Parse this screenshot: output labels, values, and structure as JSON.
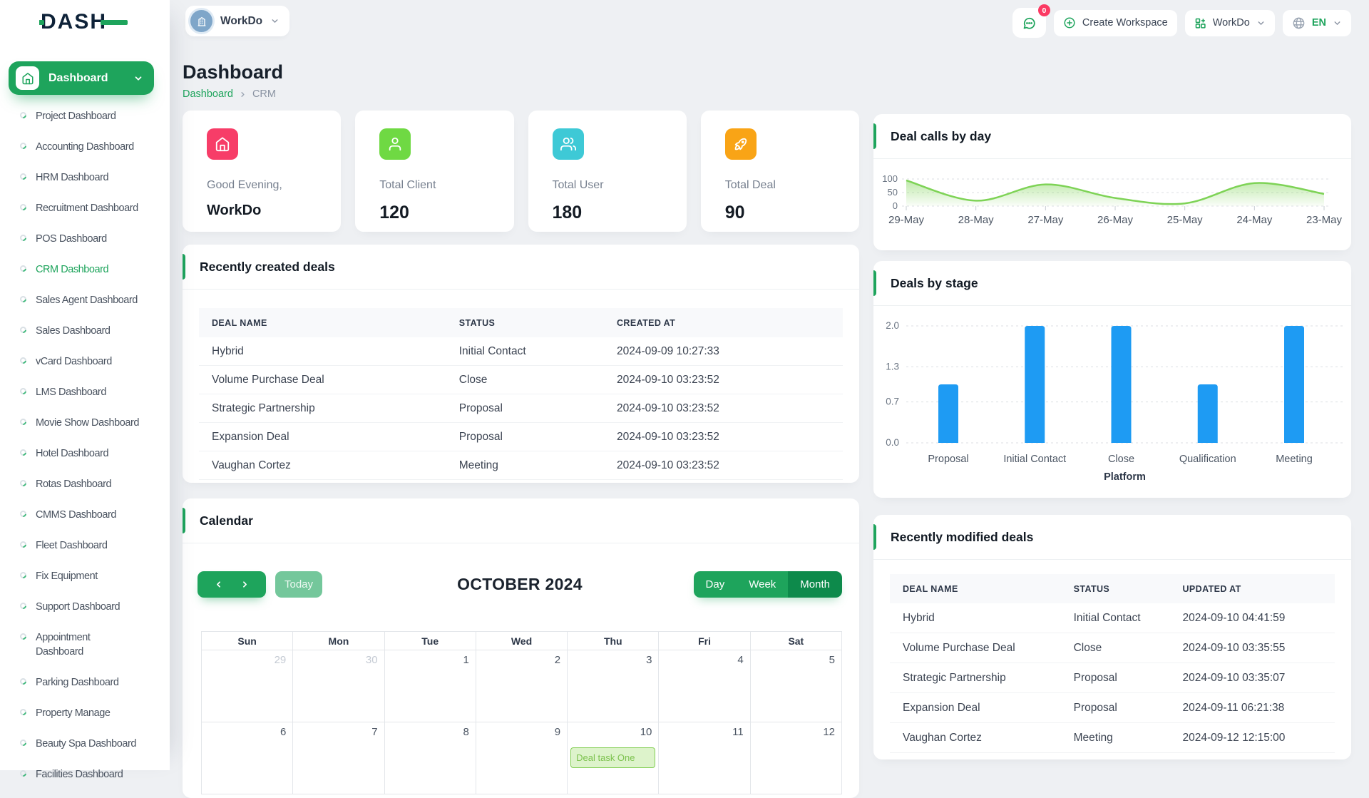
{
  "brand": {
    "logo_text": "DASH"
  },
  "topbar": {
    "workspace_chip": {
      "label": "WorkDo"
    },
    "messages_badge": "0",
    "create_workspace_label": "Create Workspace",
    "workspace_menu_label": "WorkDo",
    "language_label": "EN"
  },
  "sidebar": {
    "active_button_label": "Dashboard",
    "selected_item": "CRM Dashboard",
    "two_line_item": "Appointment Dashboard",
    "items": [
      "Project Dashboard",
      "Accounting Dashboard",
      "HRM Dashboard",
      "Recruitment Dashboard",
      "POS Dashboard",
      "CRM Dashboard",
      "Sales Agent Dashboard",
      "Sales Dashboard",
      "vCard Dashboard",
      "LMS Dashboard",
      "Movie Show Dashboard",
      "Hotel Dashboard",
      "Rotas Dashboard",
      "CMMS Dashboard",
      "Fleet Dashboard",
      "Fix Equipment",
      "Support Dashboard",
      "Appointment Dashboard",
      "Parking Dashboard",
      "Property Manage",
      "Beauty Spa Dashboard",
      "Facilities Dashboard"
    ]
  },
  "page": {
    "title": "Dashboard",
    "breadcrumb": [
      "Dashboard",
      "CRM"
    ]
  },
  "stats": [
    {
      "label": "Good Evening,",
      "value": "WorkDo",
      "icon": "home-icon",
      "color": "#F73D68"
    },
    {
      "label": "Total Client",
      "value": "120",
      "icon": "user-icon",
      "color": "#6FD943"
    },
    {
      "label": "Total User",
      "value": "180",
      "icon": "users-icon",
      "color": "#3EC9D6"
    },
    {
      "label": "Total Deal",
      "value": "90",
      "icon": "rocket-icon",
      "color": "#F9A416"
    }
  ],
  "chart_data": [
    {
      "type": "area",
      "title": "Deal calls by day",
      "x": [
        "29-May",
        "28-May",
        "27-May",
        "26-May",
        "25-May",
        "24-May",
        "23-May"
      ],
      "values": [
        95,
        20,
        80,
        30,
        10,
        85,
        45
      ],
      "yticks": [
        0,
        50,
        100
      ],
      "ylim": [
        0,
        100
      ],
      "grid": "dashed",
      "legend": "none",
      "line_color": "#7ED356"
    },
    {
      "type": "bar",
      "title": "Deals by stage",
      "categories": [
        "Proposal",
        "Initial Contact",
        "Close",
        "Qualification",
        "Meeting"
      ],
      "values": [
        1,
        2,
        2,
        1,
        2
      ],
      "yticks": [
        {
          "v": 0,
          "label": "0.0"
        },
        {
          "v": 0.7,
          "label": "0.7"
        },
        {
          "v": 1.3,
          "label": "1.3"
        },
        {
          "v": 2,
          "label": "2.0"
        }
      ],
      "ylim": [
        0,
        2
      ],
      "xlabel": "Platform",
      "grid": "dashed",
      "legend": "none",
      "bar_color": "#1E9BF3"
    }
  ],
  "created_deals": {
    "title": "Recently created deals",
    "columns": [
      "DEAL NAME",
      "STATUS",
      "CREATED AT"
    ],
    "rows": [
      [
        "Hybrid",
        "Initial Contact",
        "2024-09-09 10:27:33"
      ],
      [
        "Volume Purchase Deal",
        "Close",
        "2024-09-10 03:23:52"
      ],
      [
        "Strategic Partnership",
        "Proposal",
        "2024-09-10 03:23:52"
      ],
      [
        "Expansion Deal",
        "Proposal",
        "2024-09-10 03:23:52"
      ],
      [
        "Vaughan Cortez",
        "Meeting",
        "2024-09-10 03:23:52"
      ]
    ]
  },
  "modified_deals": {
    "title": "Recently modified deals",
    "columns": [
      "DEAL NAME",
      "STATUS",
      "UPDATED AT"
    ],
    "rows": [
      [
        "Hybrid",
        "Initial Contact",
        "2024-09-10 04:41:59"
      ],
      [
        "Volume Purchase Deal",
        "Close",
        "2024-09-10 03:35:55"
      ],
      [
        "Strategic Partnership",
        "Proposal",
        "2024-09-10 03:35:07"
      ],
      [
        "Expansion Deal",
        "Proposal",
        "2024-09-11 06:21:38"
      ],
      [
        "Vaughan Cortez",
        "Meeting",
        "2024-09-12 12:15:00"
      ]
    ]
  },
  "calendar": {
    "title": "Calendar",
    "today_label": "Today",
    "month_title": "OCTOBER 2024",
    "views": [
      "Day",
      "Week",
      "Month"
    ],
    "active_view": "Month",
    "day_headers": [
      "Sun",
      "Mon",
      "Tue",
      "Wed",
      "Thu",
      "Fri",
      "Sat"
    ],
    "weeks": [
      [
        {
          "d": "29",
          "muted": true
        },
        {
          "d": "30",
          "muted": true
        },
        {
          "d": "1"
        },
        {
          "d": "2"
        },
        {
          "d": "3"
        },
        {
          "d": "4"
        },
        {
          "d": "5"
        }
      ],
      [
        {
          "d": "6"
        },
        {
          "d": "7"
        },
        {
          "d": "8"
        },
        {
          "d": "9"
        },
        {
          "d": "10",
          "event": "Deal task One"
        },
        {
          "d": "11"
        },
        {
          "d": "12"
        }
      ]
    ]
  },
  "colors": {
    "primary": "#1EA45C",
    "primary_dark": "#0D8A4B",
    "badge_red": "#FB3A63"
  }
}
